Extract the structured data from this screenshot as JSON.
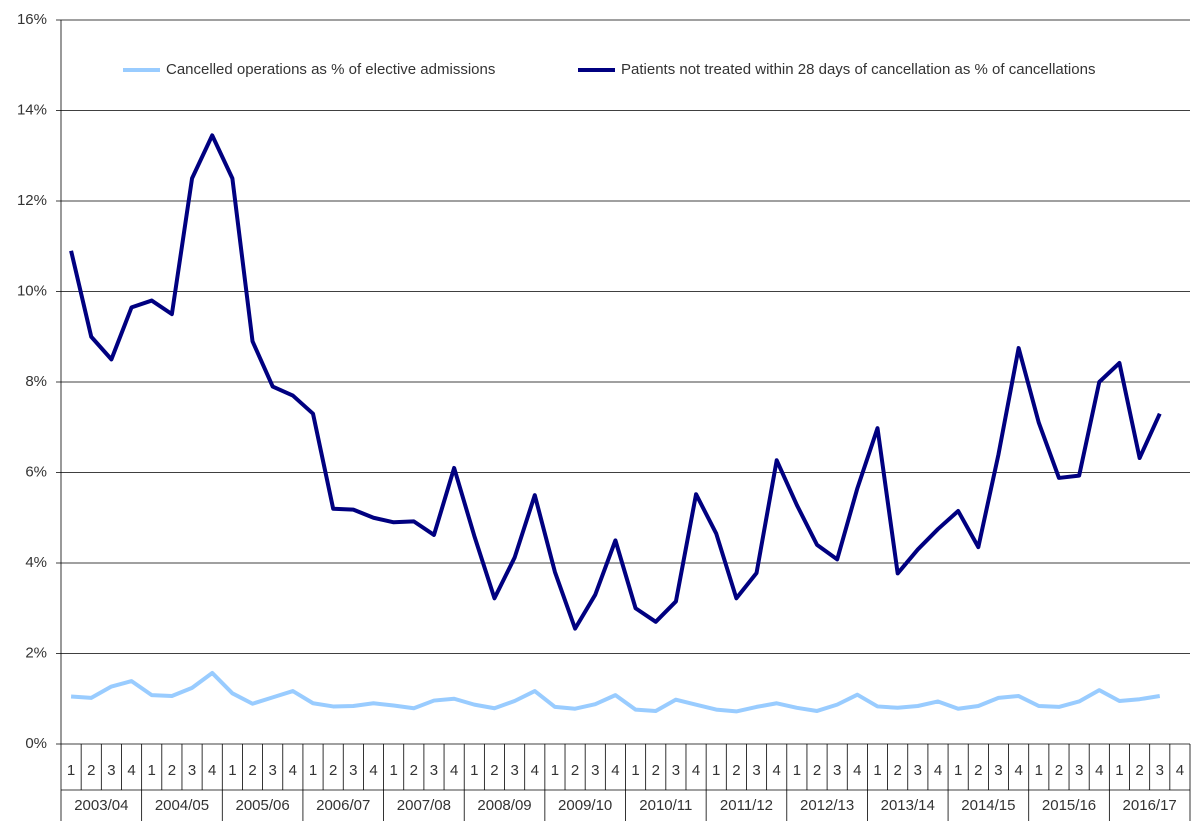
{
  "chart_data": {
    "type": "line",
    "categories": [
      "1",
      "2",
      "3",
      "4",
      "1",
      "2",
      "3",
      "4",
      "1",
      "2",
      "3",
      "4",
      "1",
      "2",
      "3",
      "4",
      "1",
      "2",
      "3",
      "4",
      "1",
      "2",
      "3",
      "4",
      "1",
      "2",
      "3",
      "4",
      "1",
      "2",
      "3",
      "4",
      "1",
      "2",
      "3",
      "4",
      "1",
      "2",
      "3",
      "4",
      "1",
      "2",
      "3",
      "4",
      "1",
      "2",
      "3",
      "4",
      "1",
      "2",
      "3",
      "4",
      "1",
      "2",
      "3",
      "4"
    ],
    "groups": [
      "2003/04",
      "2004/05",
      "2005/06",
      "2006/07",
      "2007/08",
      "2008/09",
      "2009/10",
      "2010/11",
      "2011/12",
      "2012/13",
      "2013/14",
      "2014/15",
      "2015/16",
      "2016/17"
    ],
    "series": [
      {
        "name": "Cancelled operations as % of elective admissions",
        "color": "#99ccff",
        "values": [
          1.05,
          1.02,
          1.27,
          1.39,
          1.08,
          1.06,
          1.24,
          1.57,
          1.12,
          0.89,
          1.03,
          1.17,
          0.9,
          0.83,
          0.84,
          0.9,
          0.85,
          0.79,
          0.96,
          1.0,
          0.87,
          0.79,
          0.95,
          1.17,
          0.82,
          0.78,
          0.88,
          1.08,
          0.76,
          0.73,
          0.98,
          0.87,
          0.76,
          0.72,
          0.82,
          0.9,
          0.8,
          0.73,
          0.87,
          1.09,
          0.83,
          0.8,
          0.84,
          0.94,
          0.78,
          0.84,
          1.02,
          1.06,
          0.84,
          0.82,
          0.94,
          1.19,
          0.95,
          0.99,
          1.06,
          null
        ]
      },
      {
        "name": "Patients not treated within 28 days of cancellation as % of cancellations",
        "color": "#000080",
        "values": [
          10.9,
          9.0,
          8.5,
          9.65,
          9.8,
          9.5,
          12.5,
          13.45,
          12.5,
          8.9,
          7.9,
          7.7,
          7.3,
          5.2,
          5.18,
          5.0,
          4.9,
          4.92,
          4.62,
          6.1,
          4.6,
          3.22,
          4.12,
          5.5,
          3.8,
          2.55,
          3.3,
          4.5,
          3.0,
          2.7,
          3.15,
          5.52,
          4.65,
          3.22,
          3.78,
          6.27,
          5.28,
          4.4,
          4.08,
          5.65,
          6.98,
          3.77,
          4.3,
          4.75,
          5.15,
          4.35,
          6.4,
          8.75,
          7.1,
          5.88,
          5.93,
          8.0,
          8.42,
          6.32,
          7.3,
          null
        ]
      }
    ],
    "ylim": [
      0,
      16
    ],
    "yticks": [
      {
        "value": 0,
        "label": "0%"
      },
      {
        "value": 2,
        "label": "2%"
      },
      {
        "value": 4,
        "label": "4%"
      },
      {
        "value": 6,
        "label": "6%"
      },
      {
        "value": 8,
        "label": "8%"
      },
      {
        "value": 10,
        "label": "10%"
      },
      {
        "value": 12,
        "label": "12%"
      },
      {
        "value": 14,
        "label": "14%"
      },
      {
        "value": 16,
        "label": "16%"
      }
    ],
    "grid": true
  }
}
